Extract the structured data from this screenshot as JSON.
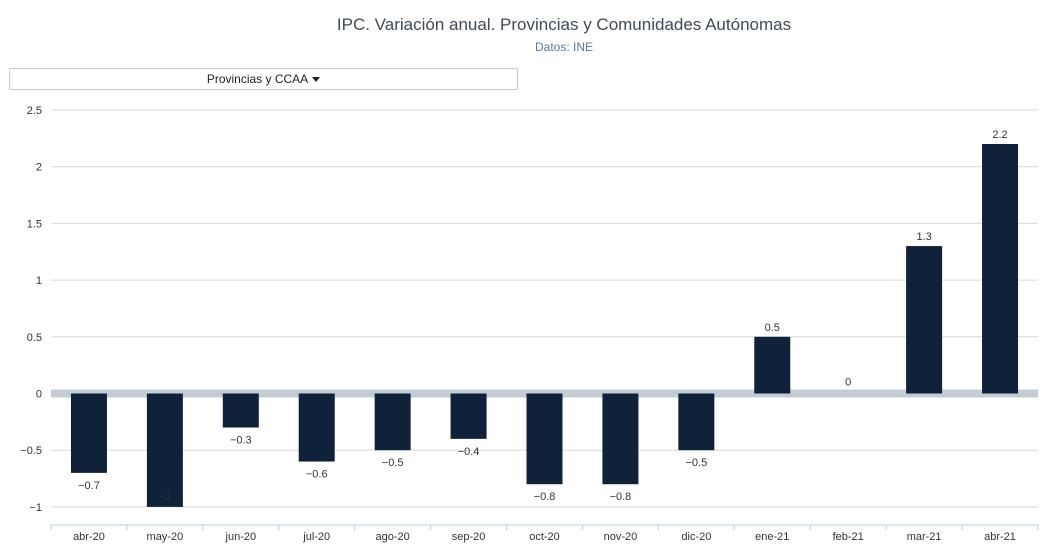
{
  "header": {
    "title": "IPC. Variación anual. Provincias y Comunidades Autónomas",
    "subtitle": "Datos: INE"
  },
  "selector": {
    "label": "Provincias y CCAA"
  },
  "colors": {
    "bar": "#0f223a",
    "zero_band": "#c2ccd6",
    "grid": "#d9d9d9"
  },
  "chart_data": {
    "type": "bar",
    "categories": [
      "abr-20",
      "may-20",
      "jun-20",
      "jul-20",
      "ago-20",
      "sep-20",
      "oct-20",
      "nov-20",
      "dic-20",
      "ene-21",
      "feb-21",
      "mar-21",
      "abr-21"
    ],
    "values": [
      -0.7,
      -1,
      -0.3,
      -0.6,
      -0.5,
      -0.4,
      -0.8,
      -0.8,
      -0.5,
      0.5,
      0,
      1.3,
      2.2
    ],
    "labels": [
      "−0.7",
      "−1",
      "−0.3",
      "−0.6",
      "−0.5",
      "−0.4",
      "−0.8",
      "−0.8",
      "−0.5",
      "0.5",
      "0",
      "1.3",
      "2.2"
    ],
    "y_ticks": [
      2.5,
      2,
      1.5,
      1,
      0.5,
      0,
      -0.5,
      -1
    ],
    "y_tick_labels": [
      "2.5",
      "2",
      "1.5",
      "1",
      "0.5",
      "0",
      "−0.5",
      "−1"
    ],
    "ylim": [
      -1,
      2.5
    ],
    "grid": true,
    "legend": false
  }
}
